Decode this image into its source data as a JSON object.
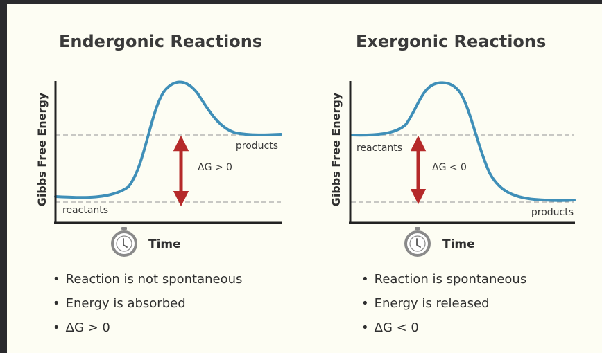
{
  "left": {
    "title": "Endergonic Reactions",
    "y_axis_label": "Gibbs Free Energy",
    "x_axis_label": "Time",
    "reactants_label": "reactants",
    "products_label": "products",
    "delta_label": "ΔG > 0",
    "bullets": [
      "Reaction is not spontaneous",
      "Energy is absorbed",
      "ΔG > 0"
    ]
  },
  "right": {
    "title": "Exergonic Reactions",
    "y_axis_label": "Gibbs Free Energy",
    "x_axis_label": "Time",
    "reactants_label": "reactants",
    "products_label": "products",
    "delta_label": "ΔG < 0",
    "bullets": [
      "Reaction is spontaneous",
      "Energy is released",
      "ΔG < 0"
    ]
  },
  "colors": {
    "curve": "#3f8fb8",
    "arrow": "#b52a2a",
    "axis": "#222222",
    "dashed": "#a9a9a9",
    "clock": "#8a8a8a"
  },
  "icons": [
    "stopwatch-icon"
  ]
}
